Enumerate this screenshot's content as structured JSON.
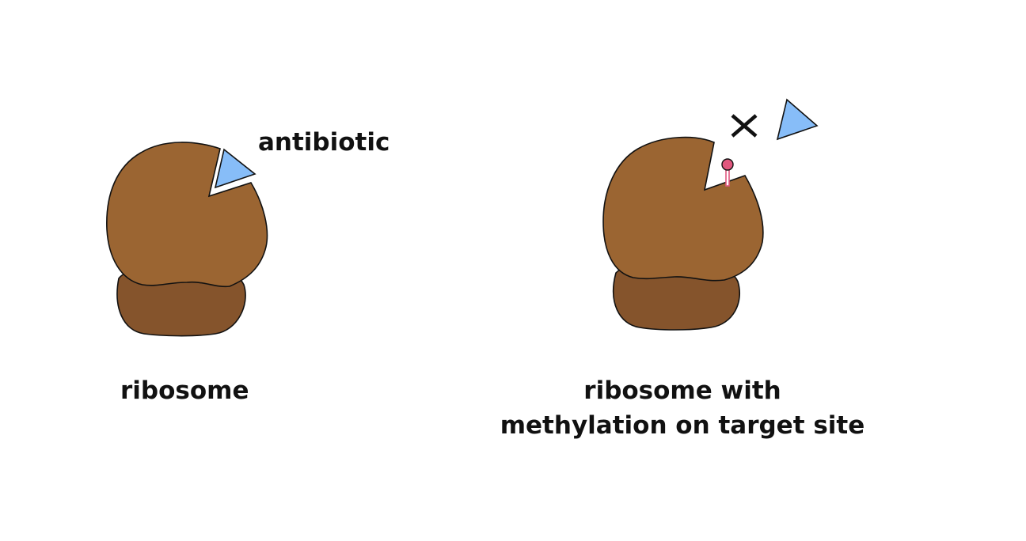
{
  "labels": {
    "antibiotic": "antibiotic",
    "ribosome": "ribosome",
    "methylated_line1": "ribosome with",
    "methylated_line2": "methylation on target site"
  },
  "colors": {
    "large_subunit": "#9b6532",
    "small_subunit": "#85542c",
    "antibiotic": "#87bdf8",
    "methyl_group": "#e0577e",
    "outline": "#111111",
    "background": "#ffffff"
  },
  "icons": {
    "blocked_marker": "cross-mark"
  }
}
